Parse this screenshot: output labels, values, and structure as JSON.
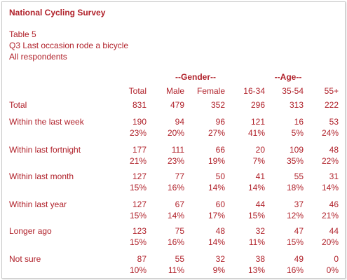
{
  "title": "National Cycling Survey",
  "meta": {
    "table": "Table 5",
    "question": "Q3 Last occasion rode a bicycle",
    "base": "All respondents"
  },
  "groups": {
    "gender": "--Gender--",
    "age": "--Age--"
  },
  "columns": [
    "Total",
    "Male",
    "Female",
    "16-34",
    "35-54",
    "55+"
  ],
  "rows": [
    {
      "label": "Total",
      "counts": [
        "831",
        "479",
        "352",
        "296",
        "313",
        "222"
      ],
      "pcts": null
    },
    {
      "label": "Within the last week",
      "counts": [
        "190",
        "94",
        "96",
        "121",
        "16",
        "53"
      ],
      "pcts": [
        "23%",
        "20%",
        "27%",
        "41%",
        "5%",
        "24%"
      ]
    },
    {
      "label": "Within last fortnight",
      "counts": [
        "177",
        "111",
        "66",
        "20",
        "109",
        "48"
      ],
      "pcts": [
        "21%",
        "23%",
        "19%",
        "7%",
        "35%",
        "22%"
      ]
    },
    {
      "label": "Within last month",
      "counts": [
        "127",
        "77",
        "50",
        "41",
        "55",
        "31"
      ],
      "pcts": [
        "15%",
        "16%",
        "14%",
        "14%",
        "18%",
        "14%"
      ]
    },
    {
      "label": "Within last year",
      "counts": [
        "127",
        "67",
        "60",
        "44",
        "37",
        "46"
      ],
      "pcts": [
        "15%",
        "14%",
        "17%",
        "15%",
        "12%",
        "21%"
      ]
    },
    {
      "label": "Longer ago",
      "counts": [
        "123",
        "75",
        "48",
        "32",
        "47",
        "44"
      ],
      "pcts": [
        "15%",
        "16%",
        "14%",
        "11%",
        "15%",
        "20%"
      ]
    },
    {
      "label": "Not sure",
      "counts": [
        "87",
        "55",
        "32",
        "38",
        "49",
        "0"
      ],
      "pcts": [
        "10%",
        "11%",
        "9%",
        "13%",
        "16%",
        "0%"
      ]
    }
  ]
}
